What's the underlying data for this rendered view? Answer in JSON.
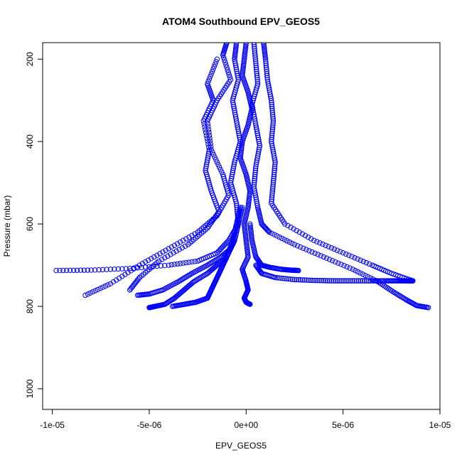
{
  "chart_data": {
    "type": "scatter",
    "title": "ATOM4 Southbound EPV_GEOS5",
    "xlabel": "EPV_GEOS5",
    "ylabel": "Pressure (mbar)",
    "xlim": [
      -1.05e-05,
      1e-05
    ],
    "ylim": [
      1050,
      160
    ],
    "y_reversed": true,
    "x_ticks": [
      {
        "value": -1e-05,
        "label": "-1e-05"
      },
      {
        "value": -5e-06,
        "label": "-5e-06"
      },
      {
        "value": 0,
        "label": "0e+00"
      },
      {
        "value": 5e-06,
        "label": "5e-06"
      },
      {
        "value": 1e-05,
        "label": "1e-05"
      }
    ],
    "y_ticks": [
      {
        "value": 200,
        "label": "200"
      },
      {
        "value": 400,
        "label": "400"
      },
      {
        "value": 600,
        "label": "600"
      },
      {
        "value": 800,
        "label": "800"
      },
      {
        "value": 1000,
        "label": "1000"
      }
    ],
    "marker": "open-circle",
    "marker_color": "#0000ff",
    "series": [
      {
        "x": [
          0.0,
          -1e-07,
          -2e-07,
          1e-07,
          3e-07,
          1e-07,
          -2e-07,
          -3e-07,
          0.0,
          2e-07,
          1e-07,
          -1e-07,
          0.0,
          1e-07,
          -2e-07,
          0.0,
          1e-07,
          -1e-07,
          0.0,
          2e-07
        ],
        "y": [
          160,
          200,
          240,
          280,
          320,
          360,
          400,
          440,
          480,
          520,
          560,
          600,
          640,
          680,
          710,
          740,
          760,
          780,
          790,
          795
        ]
      },
      {
        "x": [
          -5e-07,
          -6e-07,
          -4e-07,
          -7e-07,
          -5e-07,
          -3e-07,
          -6e-07,
          -8e-07,
          -5e-07,
          -4e-07,
          -9e-07,
          -1.5e-06,
          -2.5e-06,
          -4e-06,
          -6e-06,
          -8e-06,
          -9.8e-06
        ],
        "y": [
          160,
          200,
          250,
          300,
          350,
          400,
          450,
          500,
          550,
          600,
          640,
          670,
          690,
          700,
          708,
          712,
          713
        ]
      },
      {
        "x": [
          4e-07,
          5e-07,
          6e-07,
          3e-07,
          5e-07,
          7e-07,
          5e-07,
          4e-07,
          6e-07,
          8e-07,
          1.2e-06,
          2.5e-06,
          4e-06,
          5.5e-06,
          6.8e-06,
          7.6e-06,
          8.3e-06,
          8.8e-06,
          9.4e-06
        ],
        "y": [
          160,
          210,
          260,
          310,
          360,
          410,
          460,
          510,
          560,
          600,
          620,
          650,
          680,
          710,
          740,
          765,
          785,
          798,
          803
        ]
      },
      {
        "x": [
          -1e-06,
          -1.2e-06,
          -8e-07,
          -1.5e-06,
          -2e-06,
          -1.8e-06,
          -1.2e-06,
          -9e-07,
          -1.5e-06,
          -2.5e-06,
          -4e-06,
          -5.5e-06,
          -7e-06,
          -8.3e-06
        ],
        "y": [
          160,
          190,
          250,
          300,
          350,
          420,
          480,
          530,
          580,
          620,
          660,
          700,
          745,
          773
        ]
      },
      {
        "x": [
          9e-07,
          1e-06,
          1.1e-06,
          1.3e-06,
          1.4e-06,
          1.3e-06,
          1.5e-06,
          1.4e-06,
          1.3e-06,
          2e-06,
          3.5e-06,
          5e-06,
          6.5e-06,
          7.5e-06,
          8.6e-06
        ],
        "y": [
          160,
          200,
          250,
          300,
          350,
          400,
          450,
          500,
          550,
          600,
          640,
          670,
          700,
          720,
          738
        ]
      },
      {
        "x": [
          -1.5e-06,
          -2e-06,
          -1.7e-06,
          -2.2e-06,
          -1.9e-06,
          -2.1e-06,
          -1.8e-06,
          -1.4e-06,
          -2e-06,
          -3e-06,
          -4.5e-06,
          -5.5e-06,
          -6e-06
        ],
        "y": [
          200,
          260,
          300,
          350,
          420,
          470,
          520,
          570,
          610,
          650,
          690,
          730,
          760
        ]
      },
      {
        "x": [
          -2e-07,
          -4e-07,
          -6e-07,
          -1e-06,
          -1.5e-06,
          -2e-06,
          -2.7e-06,
          -3.2e-06,
          -3.7e-06,
          -4.2e-06,
          -4.7e-06,
          -5e-06
        ],
        "y": [
          560,
          600,
          640,
          680,
          700,
          720,
          740,
          760,
          780,
          795,
          800,
          803
        ]
      },
      {
        "x": [
          2e-07,
          3e-07,
          5e-07,
          8e-07,
          1.2e-06,
          1.8e-06,
          2.3e-06,
          2.7e-06
        ],
        "y": [
          600,
          640,
          680,
          700,
          705,
          710,
          712,
          713
        ]
      },
      {
        "x": [
          -3e-07,
          -5e-07,
          -7e-07,
          -1e-06,
          -1.2e-06,
          -1.4e-06,
          -1.6e-06,
          -1.8e-06,
          -2e-06,
          -2.6e-06,
          -3.2e-06,
          -3.8e-06
        ],
        "y": [
          560,
          600,
          640,
          680,
          700,
          720,
          740,
          760,
          780,
          790,
          795,
          800
        ]
      },
      {
        "x": [
          5e-07,
          8e-07,
          1.5e-06,
          2.5e-06,
          3.5e-06,
          4.5e-06,
          5.5e-06,
          6.5e-06,
          7.2e-06,
          7.8e-06,
          8.3e-06,
          8.6e-06
        ],
        "y": [
          700,
          720,
          730,
          735,
          737,
          738,
          738,
          738,
          738,
          738,
          738,
          738
        ]
      },
      {
        "x": [
          -6e-07,
          -8e-07,
          -1.3e-06,
          -2e-06,
          -2.8e-06,
          -3.5e-06,
          -4.3e-06,
          -5e-06,
          -5.6e-06
        ],
        "y": [
          640,
          660,
          680,
          700,
          720,
          740,
          760,
          770,
          773
        ]
      }
    ]
  }
}
